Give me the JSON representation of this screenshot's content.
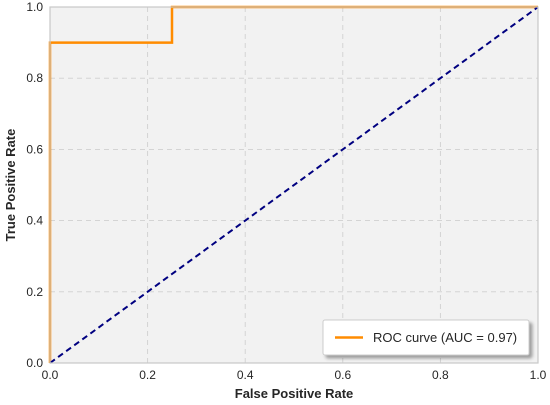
{
  "chart_data": {
    "type": "line",
    "title": "",
    "xlabel": "False Positive Rate",
    "ylabel": "True Positive Rate",
    "xlim": [
      0.0,
      1.0
    ],
    "ylim": [
      0.0,
      1.0
    ],
    "xticks": [
      "0.0",
      "0.2",
      "0.4",
      "0.6",
      "0.8",
      "1.0"
    ],
    "yticks": [
      "0.0",
      "0.2",
      "0.4",
      "0.6",
      "0.8",
      "1.0"
    ],
    "grid": true,
    "legend_position": "bottom-right",
    "series": [
      {
        "name": "ROC curve (AUC = 0.97)",
        "color": "#ff8c00",
        "style": "solid",
        "x": [
          0.0,
          0.0,
          0.25,
          0.25,
          1.0
        ],
        "y": [
          0.0,
          0.9,
          0.9,
          1.0,
          1.0
        ]
      },
      {
        "color": "#000080",
        "style": "dashed",
        "x": [
          0.0,
          1.0
        ],
        "y": [
          0.0,
          1.0
        ]
      }
    ],
    "colors": {
      "plot_background": "#f2f2f2",
      "grid": "#d0d0d0",
      "frame": "#c8c8c8"
    }
  }
}
